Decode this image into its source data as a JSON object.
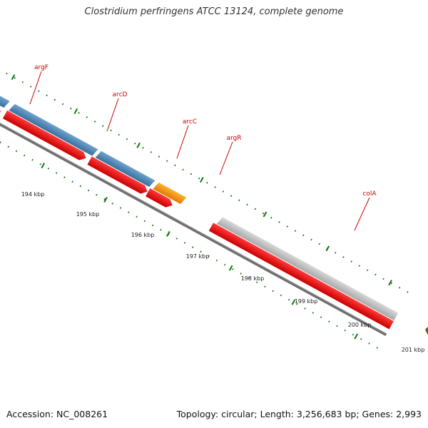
{
  "title": "Clostridium perfringens ATCC 13124, complete genome",
  "footer": {
    "accession": "Accession: NC_008261",
    "summary": "Topology: circular; Length: 3,256,683 bp; Genes: 2,993"
  },
  "genes": [
    {
      "name": "argF",
      "label": "argF"
    },
    {
      "name": "arcD",
      "label": "arcD"
    },
    {
      "name": "arcC",
      "label": "arcC"
    },
    {
      "name": "argR",
      "label": "argR"
    },
    {
      "name": "colA",
      "label": "colA"
    }
  ],
  "scale_labels": [
    "194 kbp",
    "195 kbp",
    "196 kbp",
    "197 kbp",
    "198 kbp",
    "199 kbp",
    "200 kbp",
    "201 kbp"
  ],
  "colors": {
    "gene_blue": "#4682b4",
    "gene_orange": "#ff9900",
    "gene_gray": "#c0c0c0",
    "cds_red": "#ee0000",
    "backbone": "#777777",
    "label_red": "#cc0000",
    "tick_green": "#006600"
  }
}
